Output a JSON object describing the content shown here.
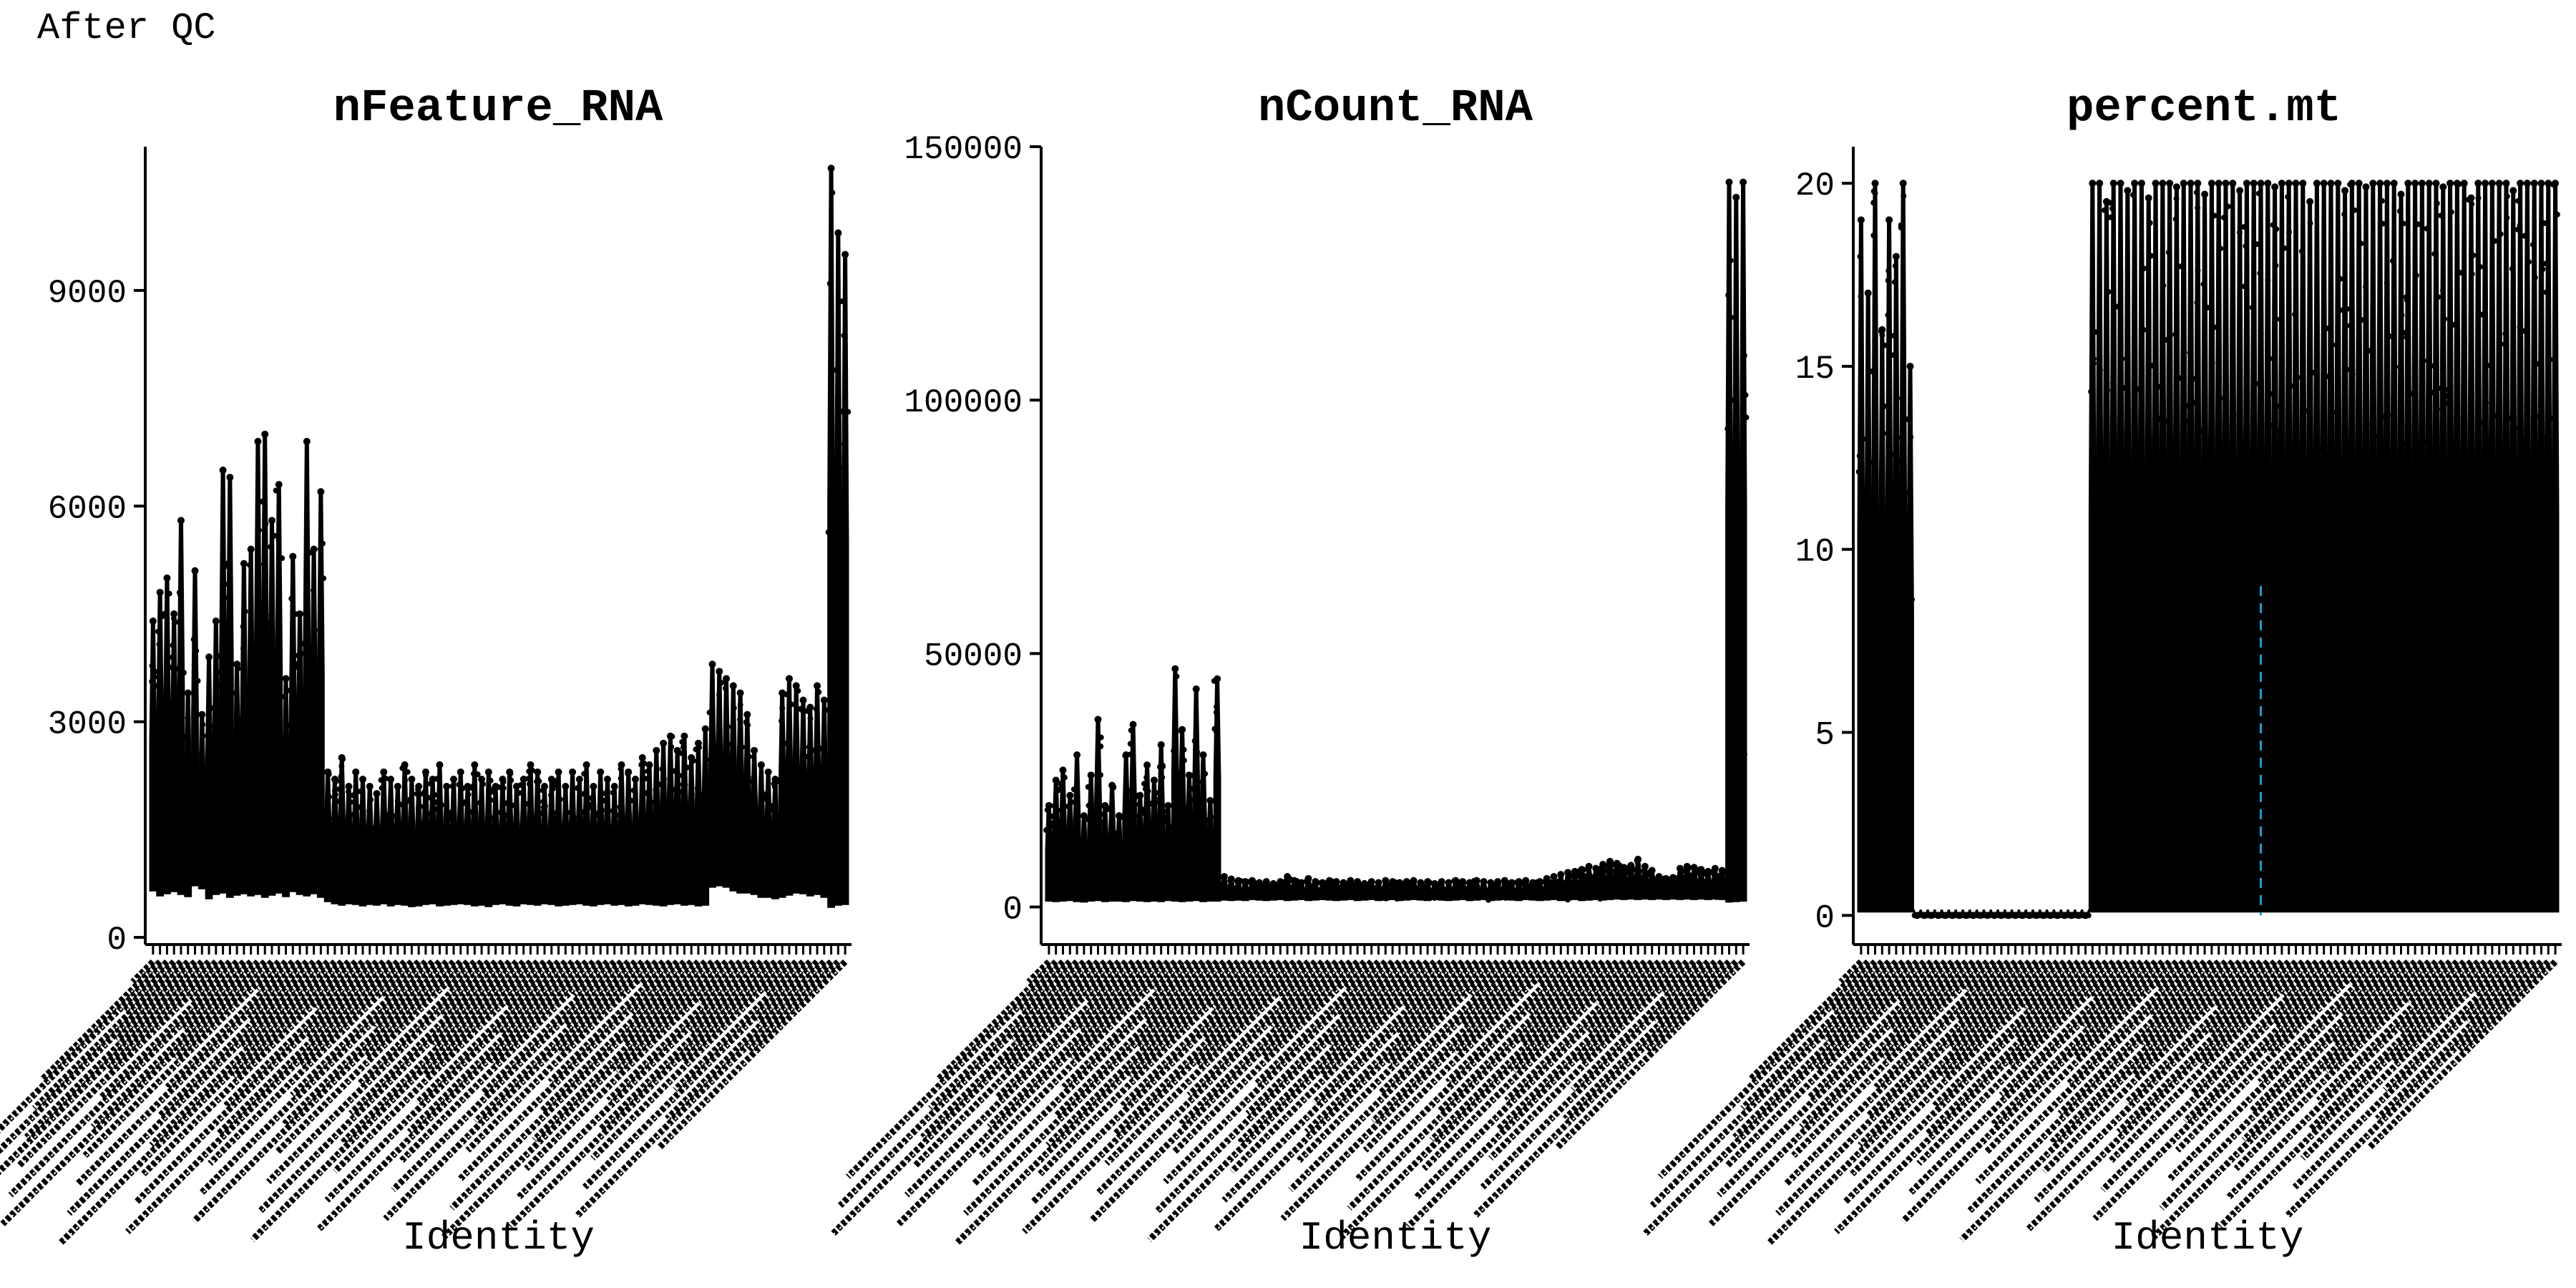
{
  "page": {
    "title": "After QC"
  },
  "chart_data": [
    {
      "type": "violin",
      "title": "nFeature_RNA",
      "xlabel": "Identity",
      "ylabel": "",
      "ylim": [
        0,
        11000
      ],
      "yticks": [
        0,
        3000,
        6000,
        9000
      ],
      "ytick_labels": [
        "0",
        "3000",
        "6000",
        "9000"
      ],
      "groups": 100,
      "group_min": [
        650,
        580,
        610,
        640,
        600,
        570,
        720,
        680,
        540,
        600,
        620,
        560,
        590,
        610,
        580,
        600,
        560,
        590,
        620,
        570,
        640,
        600,
        580,
        610,
        560,
        500,
        470,
        450,
        470,
        460,
        440,
        460,
        450,
        470,
        440,
        460,
        450,
        430,
        440,
        460,
        470,
        440,
        450,
        460,
        470,
        460,
        440,
        450,
        430,
        460,
        470,
        450,
        440,
        470,
        460,
        450,
        470,
        460,
        440,
        450,
        460,
        470,
        450,
        440,
        460,
        470,
        450,
        460,
        440,
        450,
        470,
        460,
        450,
        440,
        460,
        470,
        450,
        460,
        440,
        450,
        700,
        720,
        700,
        650,
        620,
        620,
        600,
        560,
        560,
        540,
        560,
        590,
        620,
        610,
        580,
        600,
        560,
        420,
        450,
        460
      ],
      "group_max": [
        4400,
        4800,
        5000,
        4500,
        5800,
        3400,
        5100,
        3100,
        3900,
        4400,
        6500,
        6400,
        3800,
        5200,
        5400,
        6900,
        7000,
        5800,
        6300,
        3600,
        5300,
        4500,
        6900,
        5400,
        6200,
        2300,
        2200,
        2500,
        2100,
        2300,
        2200,
        2100,
        2000,
        2300,
        2200,
        2100,
        2400,
        2200,
        2100,
        2300,
        2200,
        2400,
        2100,
        2200,
        2300,
        2100,
        2400,
        2200,
        2300,
        2100,
        2200,
        2300,
        2100,
        2200,
        2400,
        2300,
        2100,
        2200,
        2300,
        2100,
        2300,
        2200,
        2400,
        2100,
        2300,
        2200,
        2100,
        2400,
        2300,
        2200,
        2500,
        2400,
        2600,
        2700,
        2800,
        2600,
        2800,
        2500,
        2700,
        2900,
        3800,
        3700,
        3600,
        3500,
        3400,
        3100,
        2600,
        2400,
        2300,
        2200,
        3400,
        3600,
        3500,
        3300,
        3200,
        3500,
        3300,
        10700,
        9800,
        9500
      ],
      "highlight": []
    },
    {
      "type": "violin",
      "title": "nCount_RNA",
      "xlabel": "Identity",
      "ylabel": "",
      "ylim": [
        -6000,
        150000
      ],
      "yticks": [
        0,
        50000,
        100000,
        150000
      ],
      "ytick_labels": [
        "0",
        "50000",
        "100000",
        "150000"
      ],
      "groups": 100,
      "group_min": [
        1200,
        1100,
        1200,
        1300,
        1100,
        1000,
        1200,
        1300,
        1100,
        1200,
        1200,
        1100,
        1300,
        1200,
        1100,
        1200,
        1100,
        1300,
        1200,
        1100,
        1200,
        1300,
        1100,
        1200,
        1200,
        1400,
        1300,
        1400,
        1300,
        1500,
        1400,
        1300,
        1400,
        1500,
        1300,
        1400,
        1500,
        1300,
        1400,
        1500,
        1400,
        1300,
        1400,
        1500,
        1300,
        1400,
        1500,
        1300,
        1400,
        1500,
        1300,
        1400,
        1500,
        1400,
        1300,
        1500,
        1400,
        1300,
        1400,
        1500,
        1300,
        1400,
        1500,
        1300,
        1400,
        1500,
        1400,
        1300,
        1500,
        1400,
        1300,
        1400,
        1500,
        1300,
        1400,
        1500,
        1300,
        1400,
        1500,
        1400,
        1500,
        1600,
        1500,
        1600,
        1500,
        1600,
        1500,
        1600,
        1500,
        1600,
        1500,
        1600,
        1500,
        1600,
        1500,
        1600,
        1500,
        1000,
        1100,
        1200
      ],
      "group_max": [
        20000,
        25000,
        27000,
        22000,
        30000,
        18000,
        26000,
        37000,
        20000,
        24000,
        18000,
        30000,
        36000,
        22000,
        28000,
        25000,
        32000,
        20000,
        47000,
        35000,
        26000,
        43000,
        30000,
        21000,
        45000,
        6000,
        5500,
        5200,
        5000,
        5200,
        4800,
        5000,
        4600,
        5000,
        6000,
        5200,
        4800,
        5600,
        5000,
        4800,
        5200,
        5000,
        4800,
        5200,
        5000,
        4600,
        5000,
        4800,
        5200,
        5000,
        4800,
        5000,
        5200,
        4800,
        5000,
        4600,
        5000,
        4800,
        5200,
        5000,
        4800,
        5200,
        5000,
        4800,
        5000,
        5200,
        4800,
        5000,
        5200,
        4800,
        5000,
        5600,
        6000,
        6400,
        6800,
        7000,
        7400,
        8000,
        7600,
        8400,
        9000,
        8600,
        7800,
        8200,
        9400,
        8000,
        7200,
        6000,
        5600,
        5800,
        7600,
        8000,
        7800,
        7400,
        7000,
        7600,
        7200,
        143000,
        140000,
        143000
      ],
      "highlight": []
    },
    {
      "type": "violin",
      "title": "percent.mt",
      "xlabel": "Identity",
      "ylabel": "",
      "ylim": [
        -0.6,
        21
      ],
      "yticks": [
        0,
        5,
        10,
        15,
        20
      ],
      "ytick_labels": [
        "0",
        "5",
        "10",
        "15",
        "20"
      ],
      "groups": 100,
      "group_min": [
        0.1,
        0.1,
        0.1,
        0.1,
        0.1,
        0.1,
        0.1,
        0.1,
        0,
        0,
        0,
        0,
        0,
        0,
        0,
        0,
        0,
        0,
        0,
        0,
        0,
        0,
        0,
        0,
        0,
        0,
        0,
        0,
        0,
        0,
        0,
        0,
        0,
        0.1,
        0.1,
        0.1,
        0.1,
        0.1,
        0.1,
        0.1,
        0.1,
        0.1,
        0.1,
        0.1,
        0.1,
        0.1,
        0.1,
        0.1,
        0.1,
        0.1,
        0.1,
        0.1,
        0.1,
        0.1,
        0.1,
        0.1,
        0.1,
        0.1,
        0.1,
        0.1,
        0.1,
        0.1,
        0.1,
        0.1,
        0.1,
        0.1,
        0.1,
        0.1,
        0.1,
        0.1,
        0.1,
        0.1,
        0.1,
        0.1,
        0.1,
        0.1,
        0.1,
        0.1,
        0.1,
        0.1,
        0.1,
        0.1,
        0.1,
        0.1,
        0.1,
        0.1,
        0.1,
        0.1,
        0.1,
        0.1,
        0.1,
        0.1,
        0.1,
        0.1,
        0.1,
        0.1,
        0.1,
        0.1,
        0.1,
        0.1
      ],
      "group_max": [
        19,
        17,
        20,
        16,
        19,
        18,
        20,
        15,
        0,
        0,
        0,
        0,
        0,
        0,
        0,
        0,
        0,
        0,
        0,
        0,
        0,
        0,
        0,
        0,
        0,
        0,
        0,
        0,
        0,
        0,
        0,
        0,
        0,
        20,
        20,
        19.5,
        20,
        20,
        19.8,
        20,
        20,
        19.6,
        20,
        20,
        20,
        19.9,
        20,
        20,
        20,
        19.7,
        20,
        20,
        20,
        20,
        19.8,
        20,
        20,
        20,
        20,
        19.9,
        20,
        20,
        20,
        20,
        19.5,
        20,
        20,
        20,
        20,
        19.8,
        20,
        20,
        19.9,
        20,
        20,
        20,
        20,
        19.7,
        20,
        20,
        20,
        20,
        20,
        19.9,
        20,
        20,
        20,
        19.6,
        20,
        20,
        20,
        20,
        20,
        19.8,
        20,
        20,
        20,
        20,
        20,
        20
      ],
      "highlight": [
        {
          "group": 57,
          "color": "#1f9bd1"
        }
      ]
    }
  ],
  "colors": {
    "ink": "#000000",
    "background": "#ffffff",
    "highlight": "#1f9bd1"
  }
}
